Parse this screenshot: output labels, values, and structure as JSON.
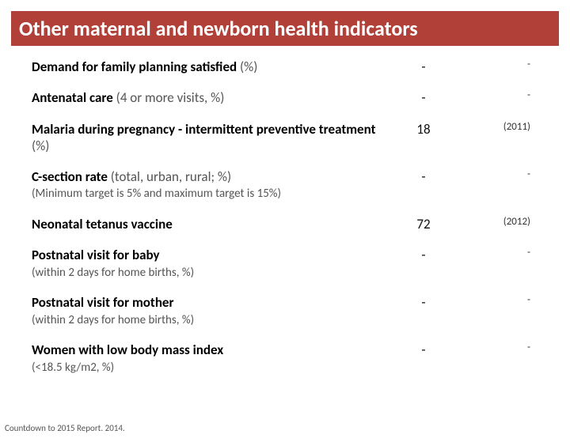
{
  "title": "Other maternal and newborn health indicators",
  "rows": [
    {
      "main": "Demand for family planning satisfied",
      "sub": " (%)",
      "note": "",
      "value": "-",
      "year": "-"
    },
    {
      "main": "Antenatal care",
      "sub": " (4 or more visits, %)",
      "note": "",
      "value": "-",
      "year": "-"
    },
    {
      "main": "Malaria during pregnancy - intermittent preventive treatment",
      "sub": " (%)",
      "note": "",
      "value": "18",
      "year": "(2011)"
    },
    {
      "main": "C-section rate",
      "sub": " (total, urban, rural; %)",
      "note": "(Minimum target is 5% and maximum target is 15%)",
      "value": "-",
      "year": "-"
    },
    {
      "main": "Neonatal tetanus vaccine",
      "sub": "",
      "note": "",
      "value": "72",
      "year": "(2012)"
    },
    {
      "main": "Postnatal visit for baby",
      "sub": "",
      "note": "(within 2 days for home births, %)",
      "value": "-",
      "year": "-"
    },
    {
      "main": "Postnatal visit for mother",
      "sub": "",
      "note": "(within 2 days for home births, %)",
      "value": "-",
      "year": "-"
    },
    {
      "main": "Women with low body mass index",
      "sub": "",
      "note": "(<18.5 kg/m2, %)",
      "value": "-",
      "year": "-"
    }
  ],
  "footer": "Countdown to 2015 Report. 2014.",
  "colors": {
    "title_bg": "#b04038",
    "title_text": "#ffffff",
    "text_main": "#000000",
    "text_sub": "#555555"
  },
  "typography": {
    "title_fontsize": 26,
    "row_fontsize": 17,
    "note_fontsize": 15,
    "year_fontsize": 13,
    "footer_fontsize": 11
  }
}
